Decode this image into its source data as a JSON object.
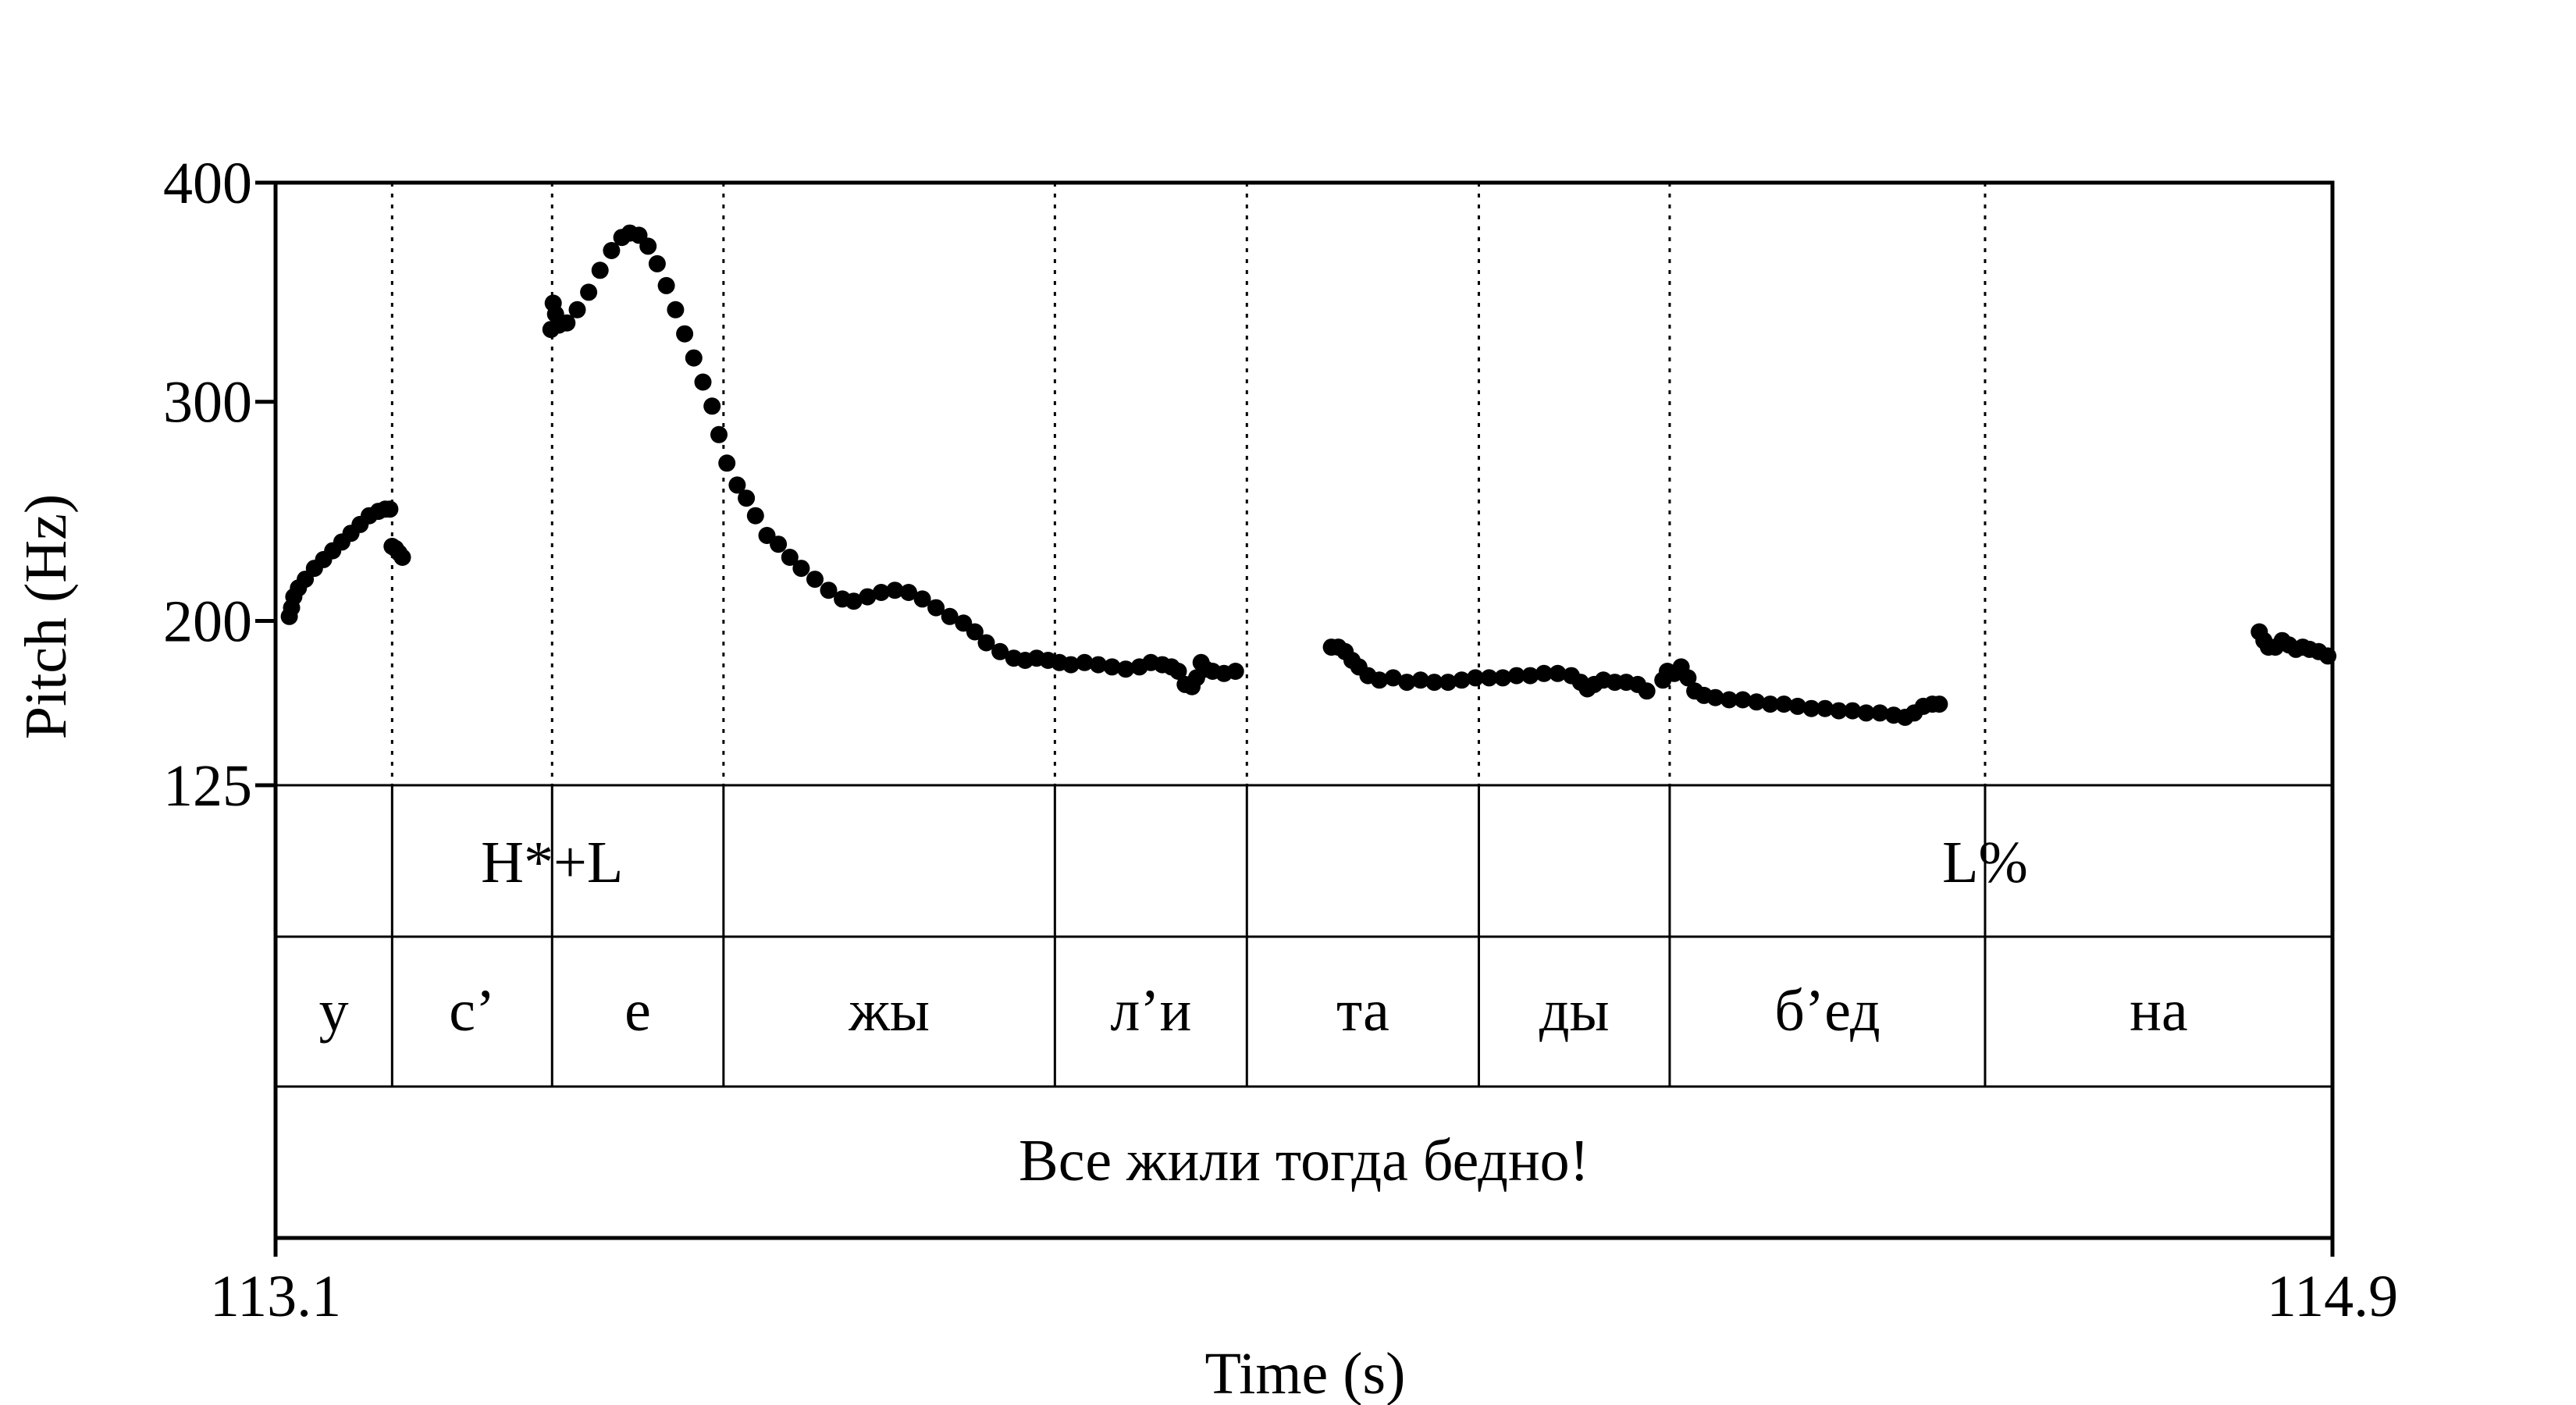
{
  "chart_data": {
    "type": "scatter",
    "xlabel": "Time (s)",
    "ylabel": "Pitch (Hz)",
    "xlim": [
      113.1,
      114.9
    ],
    "ylim": [
      125,
      400
    ],
    "x_tick_labels": [
      "113.1",
      "114.9"
    ],
    "y_ticks": [
      125,
      200,
      300,
      400
    ],
    "boundaries": [
      113.202,
      113.342,
      113.492,
      113.782,
      113.95,
      114.153,
      114.32,
      114.596
    ],
    "tones": [
      {
        "label": "H*+L",
        "t": 113.342
      },
      {
        "label": "L%",
        "t": 114.596
      }
    ],
    "syllables": [
      {
        "label": "у",
        "start": 113.1,
        "end": 113.202
      },
      {
        "label": "с’",
        "start": 113.202,
        "end": 113.342
      },
      {
        "label": "е",
        "start": 113.342,
        "end": 113.492
      },
      {
        "label": "жы",
        "start": 113.492,
        "end": 113.782
      },
      {
        "label": "л’и",
        "start": 113.782,
        "end": 113.95
      },
      {
        "label": "та",
        "start": 113.95,
        "end": 114.153
      },
      {
        "label": "ды",
        "start": 114.153,
        "end": 114.32
      },
      {
        "label": "б’ед",
        "start": 114.32,
        "end": 114.596
      },
      {
        "label": "на",
        "start": 114.596,
        "end": 114.9
      }
    ],
    "sentence": "Все жили тогда бедно!",
    "series": [
      {
        "points": [
          [
            113.112,
            202
          ],
          [
            113.114,
            206
          ],
          [
            113.116,
            211
          ],
          [
            113.12,
            215
          ],
          [
            113.126,
            219
          ],
          [
            113.134,
            224
          ],
          [
            113.142,
            228
          ],
          [
            113.15,
            232
          ],
          [
            113.158,
            236
          ],
          [
            113.166,
            240
          ],
          [
            113.174,
            244
          ],
          [
            113.182,
            248
          ],
          [
            113.19,
            250
          ],
          [
            113.196,
            251
          ],
          [
            113.2,
            251
          ],
          [
            113.202,
            234
          ],
          [
            113.205,
            233
          ],
          [
            113.208,
            231
          ],
          [
            113.211,
            229
          ],
          [
            113.341,
            333
          ],
          [
            113.343,
            345
          ],
          [
            113.345,
            340
          ],
          [
            113.348,
            335
          ],
          [
            113.355,
            336
          ],
          [
            113.364,
            342
          ],
          [
            113.374,
            350
          ],
          [
            113.384,
            360
          ],
          [
            113.394,
            369
          ],
          [
            113.403,
            375
          ],
          [
            113.41,
            377
          ],
          [
            113.418,
            376
          ],
          [
            113.426,
            371
          ],
          [
            113.434,
            363
          ],
          [
            113.442,
            353
          ],
          [
            113.45,
            342
          ],
          [
            113.458,
            331
          ],
          [
            113.466,
            320
          ],
          [
            113.474,
            309
          ],
          [
            113.482,
            298
          ],
          [
            113.488,
            285
          ],
          [
            113.495,
            272
          ],
          [
            113.504,
            262
          ],
          [
            113.512,
            256
          ],
          [
            113.52,
            248
          ],
          [
            113.53,
            239
          ],
          [
            113.54,
            235
          ],
          [
            113.55,
            229
          ],
          [
            113.56,
            224
          ],
          [
            113.572,
            219
          ],
          [
            113.584,
            214
          ],
          [
            113.596,
            210
          ],
          [
            113.606,
            209
          ],
          [
            113.618,
            211
          ],
          [
            113.63,
            213
          ],
          [
            113.642,
            214
          ],
          [
            113.654,
            213
          ],
          [
            113.666,
            210
          ],
          [
            113.678,
            206
          ],
          [
            113.69,
            202
          ],
          [
            113.702,
            199
          ],
          [
            113.712,
            195
          ],
          [
            113.722,
            190
          ],
          [
            113.734,
            186
          ],
          [
            113.746,
            183
          ],
          [
            113.756,
            182
          ],
          [
            113.766,
            183
          ],
          [
            113.776,
            182
          ],
          [
            113.786,
            181
          ],
          [
            113.796,
            180
          ],
          [
            113.808,
            181
          ],
          [
            113.82,
            180
          ],
          [
            113.832,
            179
          ],
          [
            113.844,
            178
          ],
          [
            113.856,
            179
          ],
          [
            113.866,
            181
          ],
          [
            113.876,
            180
          ],
          [
            113.884,
            179
          ],
          [
            113.89,
            177
          ],
          [
            113.896,
            171
          ],
          [
            113.902,
            170
          ],
          [
            113.906,
            174
          ],
          [
            113.91,
            181
          ],
          [
            113.914,
            178
          ],
          [
            113.92,
            177
          ],
          [
            113.93,
            176
          ],
          [
            113.94,
            177
          ],
          [
            114.024,
            188
          ],
          [
            114.03,
            188
          ],
          [
            114.036,
            186
          ],
          [
            114.042,
            182
          ],
          [
            114.048,
            179
          ],
          [
            114.056,
            175
          ],
          [
            114.066,
            173
          ],
          [
            114.078,
            174
          ],
          [
            114.09,
            172
          ],
          [
            114.102,
            173
          ],
          [
            114.114,
            172
          ],
          [
            114.126,
            172
          ],
          [
            114.138,
            173
          ],
          [
            114.15,
            174
          ],
          [
            114.162,
            174
          ],
          [
            114.174,
            174
          ],
          [
            114.186,
            175
          ],
          [
            114.198,
            175
          ],
          [
            114.21,
            176
          ],
          [
            114.222,
            176
          ],
          [
            114.234,
            175
          ],
          [
            114.242,
            172
          ],
          [
            114.248,
            169
          ],
          [
            114.254,
            171
          ],
          [
            114.262,
            173
          ],
          [
            114.272,
            172
          ],
          [
            114.282,
            172
          ],
          [
            114.292,
            171
          ],
          [
            114.3,
            168
          ],
          [
            114.314,
            173
          ],
          [
            114.318,
            177
          ],
          [
            114.324,
            176
          ],
          [
            114.33,
            179
          ],
          [
            114.336,
            174
          ],
          [
            114.342,
            168
          ],
          [
            114.35,
            166
          ],
          [
            114.36,
            165
          ],
          [
            114.372,
            164
          ],
          [
            114.384,
            164
          ],
          [
            114.396,
            163
          ],
          [
            114.408,
            162
          ],
          [
            114.42,
            162
          ],
          [
            114.432,
            161
          ],
          [
            114.444,
            160
          ],
          [
            114.456,
            160
          ],
          [
            114.468,
            159
          ],
          [
            114.48,
            159
          ],
          [
            114.492,
            158
          ],
          [
            114.504,
            158
          ],
          [
            114.516,
            157
          ],
          [
            114.526,
            156
          ],
          [
            114.534,
            158
          ],
          [
            114.542,
            161
          ],
          [
            114.55,
            162
          ],
          [
            114.556,
            162
          ],
          [
            114.836,
            195
          ],
          [
            114.84,
            191
          ],
          [
            114.844,
            188
          ],
          [
            114.85,
            188
          ],
          [
            114.856,
            191
          ],
          [
            114.862,
            189
          ],
          [
            114.868,
            187
          ],
          [
            114.874,
            188
          ],
          [
            114.88,
            187
          ],
          [
            114.888,
            186
          ],
          [
            114.896,
            184
          ]
        ]
      }
    ]
  }
}
